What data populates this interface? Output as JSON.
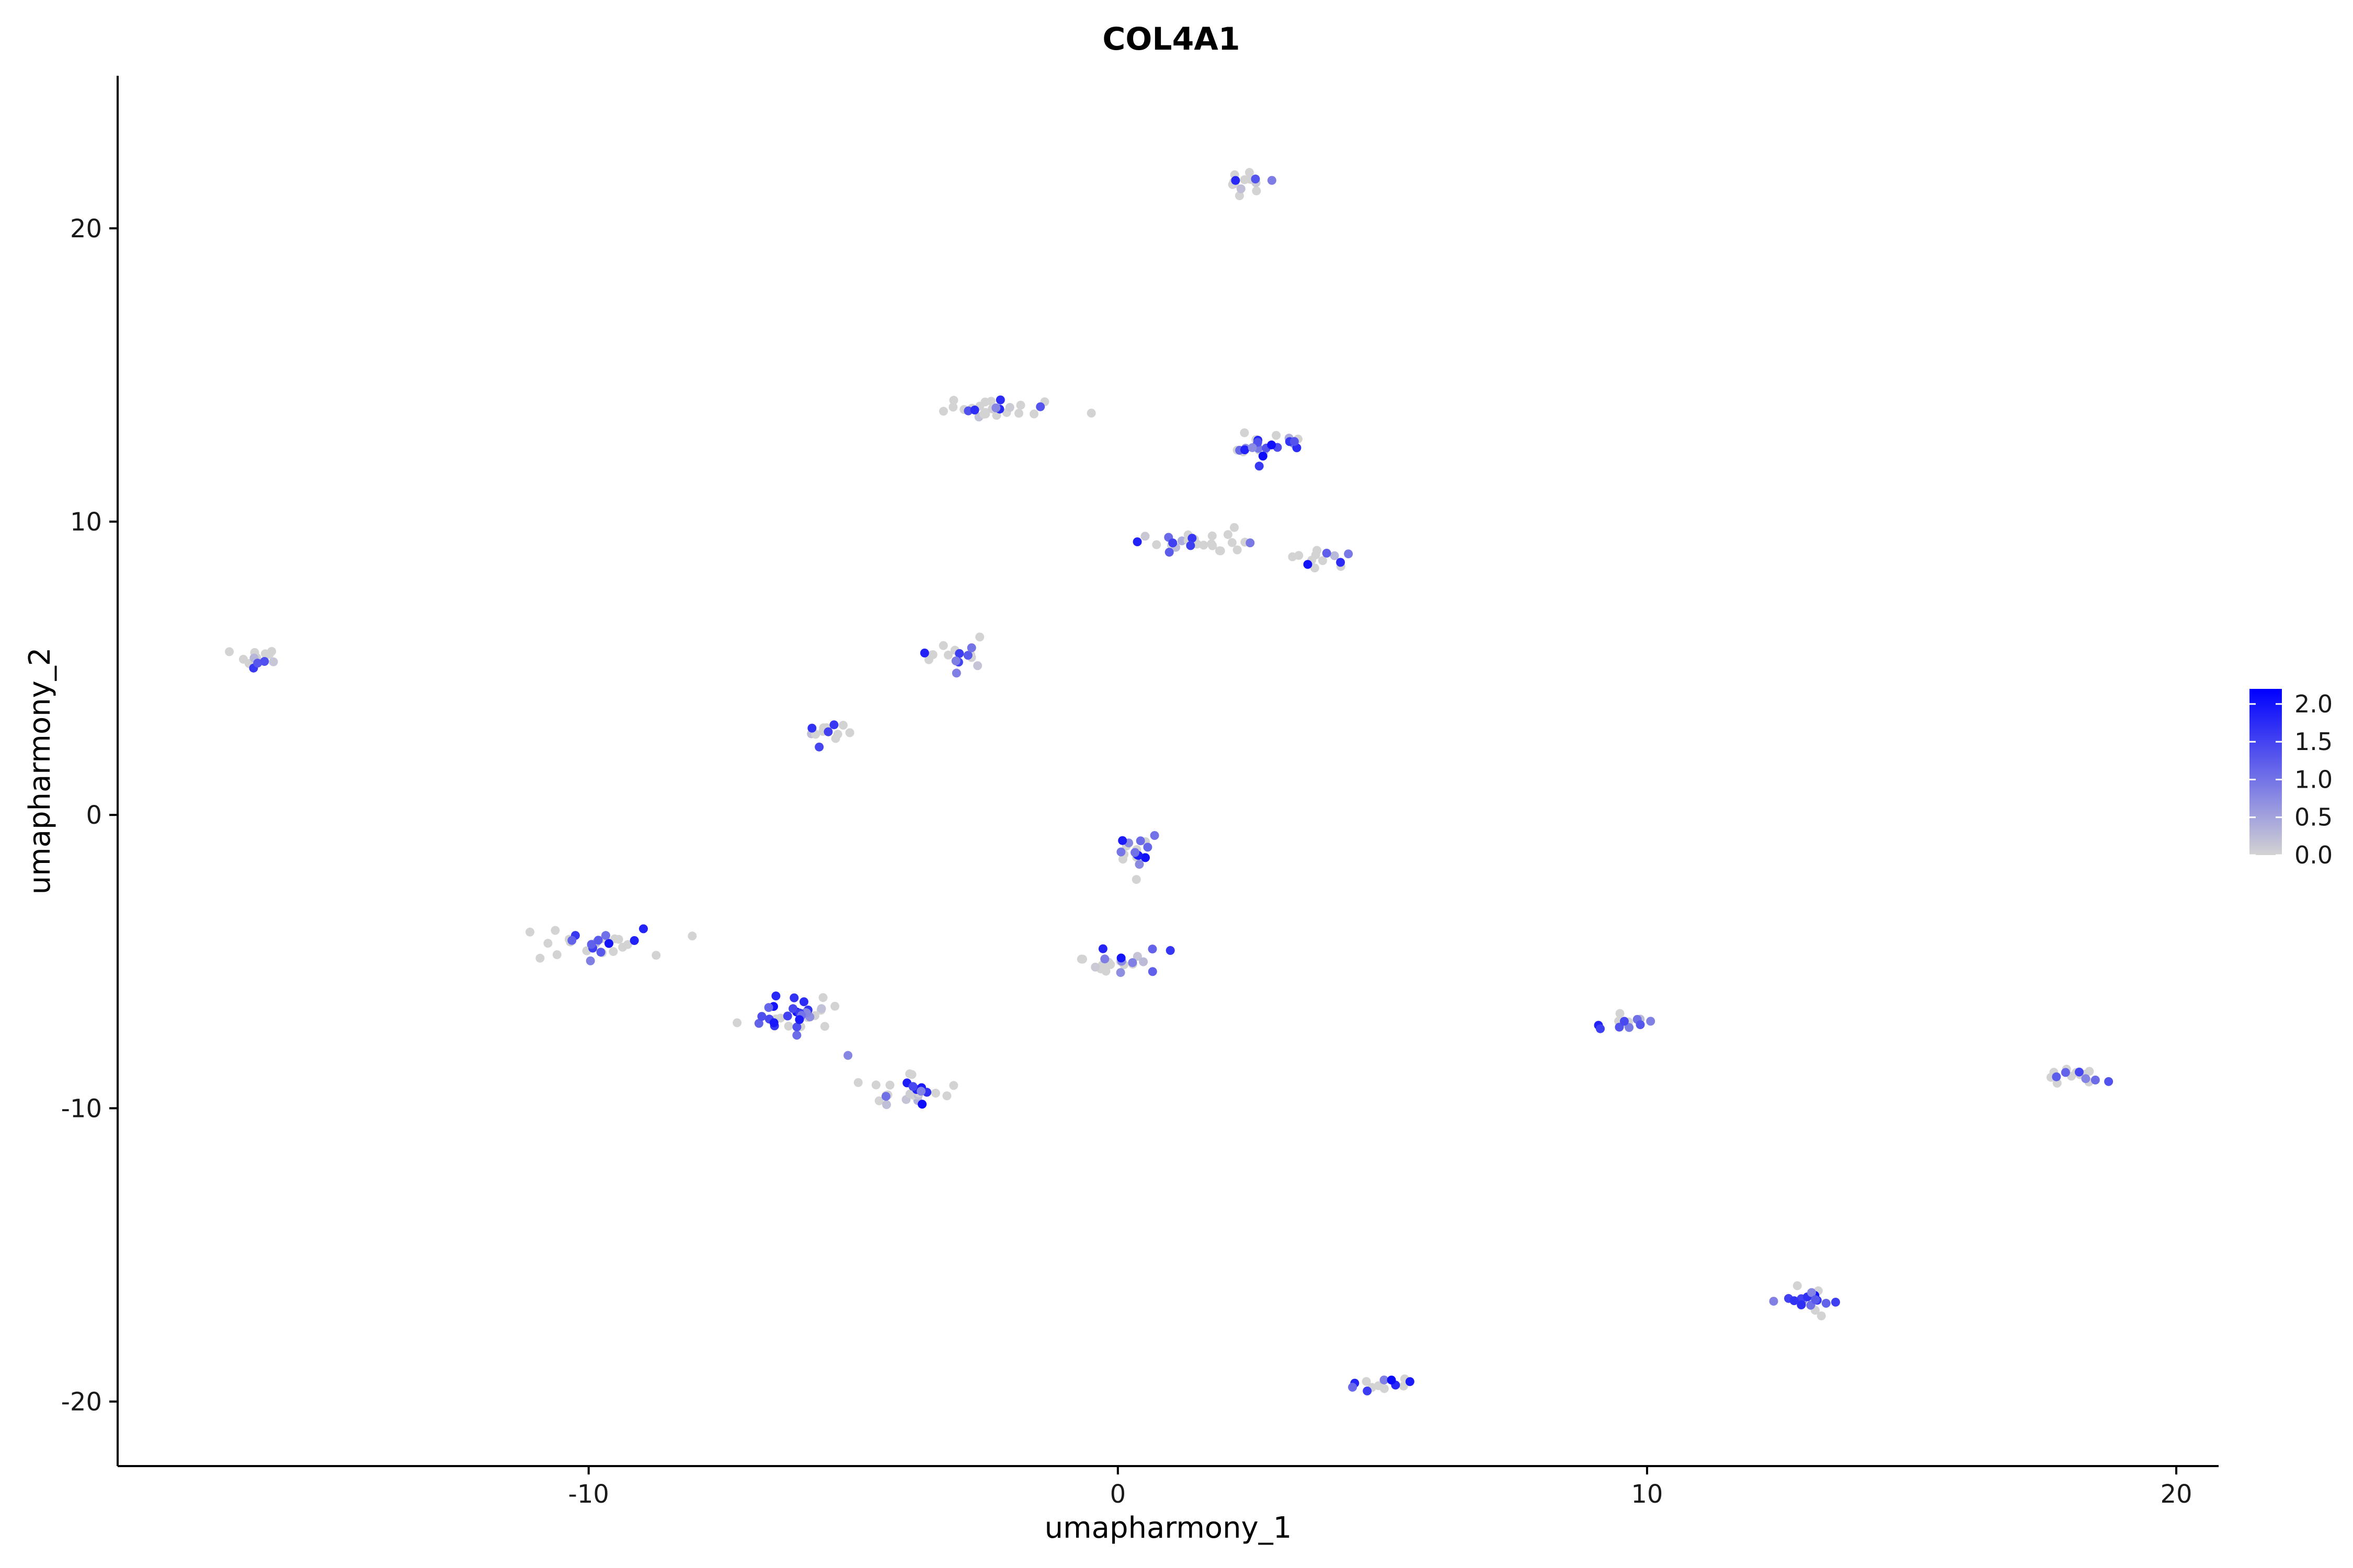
{
  "chart_data": {
    "type": "scatter",
    "title": "COL4A1",
    "xlabel": "umapharmony_1",
    "ylabel": "umapharmony_2",
    "xlim": [
      -18.9,
      20.8
    ],
    "ylim": [
      -22.2,
      25.2
    ],
    "xticks": [
      -10,
      0,
      10,
      20
    ],
    "yticks": [
      20,
      10,
      0,
      -10,
      -20
    ],
    "grid": false,
    "color_scale": {
      "low": "#d3d3d3",
      "high": "#0000ff",
      "min": 0.0,
      "max": 2.2,
      "legend_ticks": [
        "2.0",
        "1.5",
        "1.0",
        "0.5",
        "0.0"
      ],
      "legend_values": [
        2.0,
        1.5,
        1.0,
        0.5,
        0.0
      ],
      "legend_position": "right"
    },
    "clusters": [
      {
        "x": 2.4,
        "y": 21.6,
        "n": 14,
        "sx": 0.22,
        "sy": 0.22,
        "expr": 0.2
      },
      {
        "x": -2.4,
        "y": 13.9,
        "n": 26,
        "sx": 0.55,
        "sy": 0.22,
        "expr": 0.3
      },
      {
        "x": 2.8,
        "y": 12.6,
        "n": 26,
        "sx": 0.4,
        "sy": 0.25,
        "expr": 0.65
      },
      {
        "x": 1.2,
        "y": 9.2,
        "n": 26,
        "sx": 0.55,
        "sy": 0.2,
        "expr": 0.3
      },
      {
        "x": 3.8,
        "y": 8.7,
        "n": 12,
        "sx": 0.25,
        "sy": 0.2,
        "expr": 0.35
      },
      {
        "x": -16.3,
        "y": 5.3,
        "n": 14,
        "sx": 0.22,
        "sy": 0.2,
        "expr": 0.25
      },
      {
        "x": -3.0,
        "y": 5.4,
        "n": 18,
        "sx": 0.3,
        "sy": 0.28,
        "expr": 0.35
      },
      {
        "x": -5.6,
        "y": 2.8,
        "n": 14,
        "sx": 0.28,
        "sy": 0.15,
        "expr": 0.35
      },
      {
        "x": 0.4,
        "y": -1.2,
        "n": 18,
        "sx": 0.3,
        "sy": 0.3,
        "expr": 0.6
      },
      {
        "x": -9.8,
        "y": -4.5,
        "n": 32,
        "sx": 0.5,
        "sy": 0.3,
        "expr": 0.4
      },
      {
        "x": 0.0,
        "y": -5.0,
        "n": 24,
        "sx": 0.4,
        "sy": 0.2,
        "expr": 0.5
      },
      {
        "x": -6.2,
        "y": -6.8,
        "n": 34,
        "sx": 0.38,
        "sy": 0.35,
        "expr": 0.75
      },
      {
        "x": -4.0,
        "y": -9.4,
        "n": 26,
        "sx": 0.45,
        "sy": 0.22,
        "expr": 0.2
      },
      {
        "x": 9.6,
        "y": -7.1,
        "n": 14,
        "sx": 0.28,
        "sy": 0.15,
        "expr": 0.45
      },
      {
        "x": 18.0,
        "y": -8.9,
        "n": 16,
        "sx": 0.3,
        "sy": 0.15,
        "expr": 0.25
      },
      {
        "x": 13.0,
        "y": -16.6,
        "n": 20,
        "sx": 0.28,
        "sy": 0.2,
        "expr": 0.75
      },
      {
        "x": 5.1,
        "y": -19.4,
        "n": 14,
        "sx": 0.28,
        "sy": 0.12,
        "expr": 0.45
      }
    ],
    "outliers": [
      {
        "x": 2.2,
        "y": 9.8,
        "v": 0.0
      },
      {
        "x": 2.4,
        "y": 9.3,
        "v": 0.0
      },
      {
        "x": 3.3,
        "y": 8.8,
        "v": 0.0
      },
      {
        "x": -5.1,
        "y": -8.2,
        "v": 0.8
      },
      {
        "x": 0.35,
        "y": -2.2,
        "v": 0.0
      },
      {
        "x": -0.5,
        "y": 13.7,
        "v": 0.0
      }
    ]
  }
}
